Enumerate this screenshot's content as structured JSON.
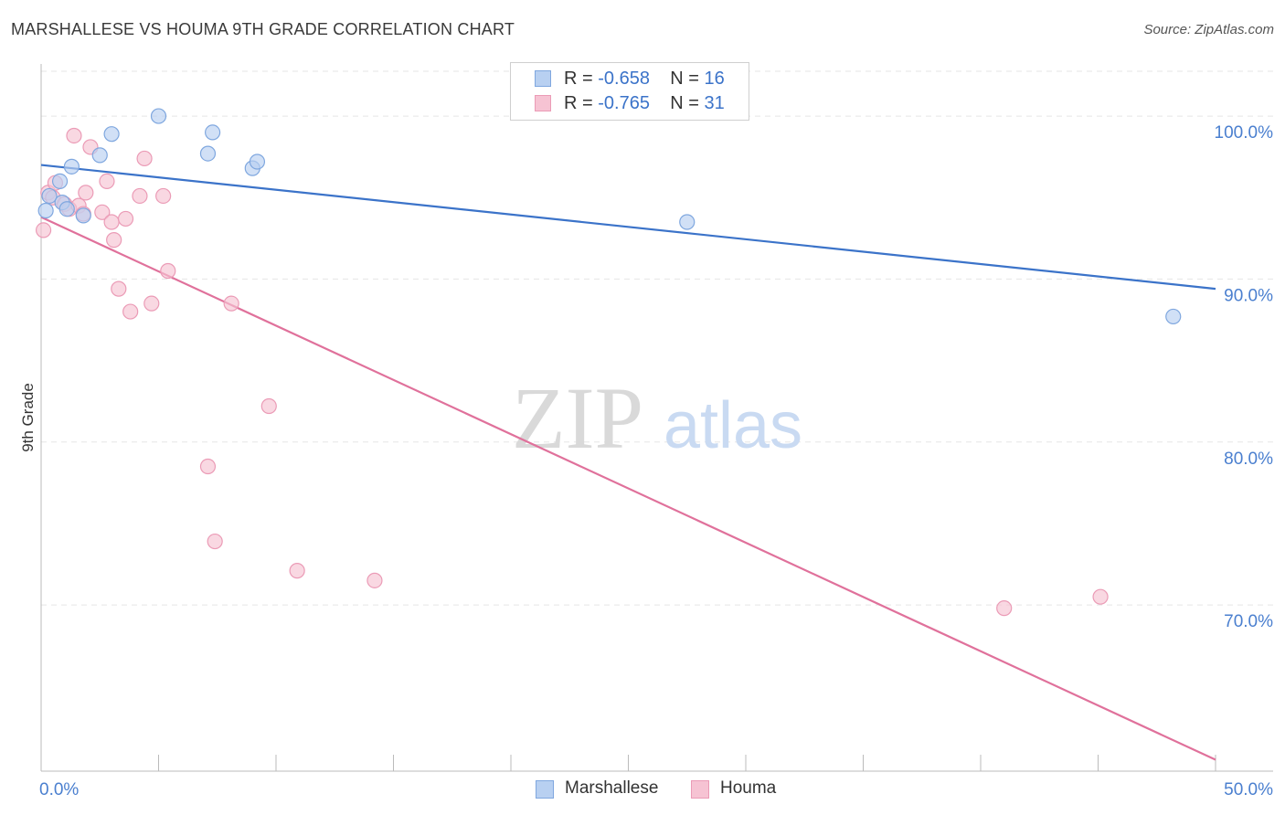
{
  "title": "MARSHALLESE VS HOUMA 9TH GRADE CORRELATION CHART",
  "source": "Source: ZipAtlas.com",
  "watermark": {
    "zip": "ZIP",
    "atlas": "atlas"
  },
  "colors": {
    "blue": "#3b73c9",
    "blue_fill": "#b8d0f1",
    "pink": "#e0719b",
    "pink_fill": "#f6c3d3",
    "grid": "#e5e5e5",
    "axis_label": "#4a7fcf"
  },
  "legend": {
    "rows": [
      {
        "r_label": "R = ",
        "r_value": "-0.658",
        "n_label": "N = ",
        "n_value": "16"
      },
      {
        "r_label": "R = ",
        "r_value": "-0.765",
        "n_label": "N = ",
        "n_value": "31"
      }
    ]
  },
  "bottom_legend": {
    "marshallese": "Marshallese",
    "houma": "Houma"
  },
  "chart_data": {
    "type": "scatter",
    "title": "MARSHALLESE VS HOUMA 9TH GRADE CORRELATION CHART",
    "xlabel": "",
    "ylabel": "9th Grade",
    "xlim": [
      0,
      50
    ],
    "ylim": [
      59.8,
      103.2
    ],
    "x_tick_labels": [
      "0.0%",
      "50.0%"
    ],
    "y_ticks": [
      70,
      80,
      90,
      100
    ],
    "y_tick_labels": [
      "70.0%",
      "80.0%",
      "90.0%",
      "100.0%"
    ],
    "series": [
      {
        "name": "Marshallese",
        "r": -0.658,
        "n": 16,
        "trend": {
          "x": [
            0,
            50
          ],
          "y": [
            97.0,
            89.4
          ]
        },
        "points": [
          [
            0.2,
            94.2
          ],
          [
            0.35,
            95.1
          ],
          [
            0.8,
            96.0
          ],
          [
            0.9,
            94.7
          ],
          [
            1.1,
            94.3
          ],
          [
            1.3,
            96.9
          ],
          [
            1.8,
            93.9
          ],
          [
            2.5,
            97.6
          ],
          [
            3.0,
            98.9
          ],
          [
            5.0,
            100.0
          ],
          [
            7.1,
            97.7
          ],
          [
            7.3,
            99.0
          ],
          [
            9.0,
            96.8
          ],
          [
            9.2,
            97.2
          ],
          [
            27.5,
            93.5
          ],
          [
            48.2,
            87.7
          ]
        ]
      },
      {
        "name": "Houma",
        "r": -0.765,
        "n": 31,
        "trend": {
          "x": [
            0,
            50
          ],
          "y": [
            93.8,
            60.5
          ]
        },
        "points": [
          [
            0.1,
            93.0
          ],
          [
            0.3,
            95.3
          ],
          [
            0.5,
            95.0
          ],
          [
            0.6,
            95.9
          ],
          [
            1.0,
            94.6
          ],
          [
            1.2,
            94.3
          ],
          [
            1.4,
            98.8
          ],
          [
            1.6,
            94.5
          ],
          [
            1.8,
            94.0
          ],
          [
            1.9,
            95.3
          ],
          [
            2.1,
            98.1
          ],
          [
            2.6,
            94.1
          ],
          [
            2.8,
            96.0
          ],
          [
            3.0,
            93.5
          ],
          [
            3.1,
            92.4
          ],
          [
            3.3,
            89.4
          ],
          [
            3.6,
            93.7
          ],
          [
            3.8,
            88.0
          ],
          [
            4.2,
            95.1
          ],
          [
            4.4,
            97.4
          ],
          [
            4.7,
            88.5
          ],
          [
            5.2,
            95.1
          ],
          [
            5.4,
            90.5
          ],
          [
            7.1,
            78.5
          ],
          [
            7.4,
            73.9
          ],
          [
            8.1,
            88.5
          ],
          [
            9.7,
            82.2
          ],
          [
            10.9,
            72.1
          ],
          [
            14.2,
            71.5
          ],
          [
            41.0,
            69.8
          ],
          [
            45.1,
            70.5
          ]
        ]
      }
    ]
  }
}
